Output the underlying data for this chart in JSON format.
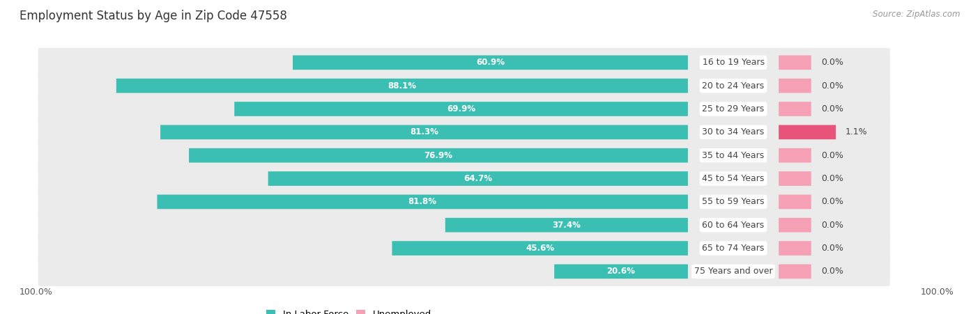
{
  "title": "Employment Status by Age in Zip Code 47558",
  "source": "Source: ZipAtlas.com",
  "age_groups": [
    "16 to 19 Years",
    "20 to 24 Years",
    "25 to 29 Years",
    "30 to 34 Years",
    "35 to 44 Years",
    "45 to 54 Years",
    "55 to 59 Years",
    "60 to 64 Years",
    "65 to 74 Years",
    "75 Years and over"
  ],
  "in_labor_force": [
    60.9,
    88.1,
    69.9,
    81.3,
    76.9,
    64.7,
    81.8,
    37.4,
    45.6,
    20.6
  ],
  "unemployed": [
    0.0,
    0.0,
    0.0,
    1.1,
    0.0,
    0.0,
    0.0,
    0.0,
    0.0,
    0.0
  ],
  "labor_force_color": "#3BBFB2",
  "unemployed_color_normal": "#F5A0B5",
  "unemployed_color_highlight": "#E8537A",
  "row_bg_color": "#EBEBEB",
  "label_color_white": "#FFFFFF",
  "label_color_dark": "#444444",
  "title_fontsize": 12,
  "source_fontsize": 8.5,
  "bar_label_fontsize": 8.5,
  "age_label_fontsize": 9,
  "unval_label_fontsize": 9,
  "legend_fontsize": 9.5,
  "axis_label_fontsize": 9
}
